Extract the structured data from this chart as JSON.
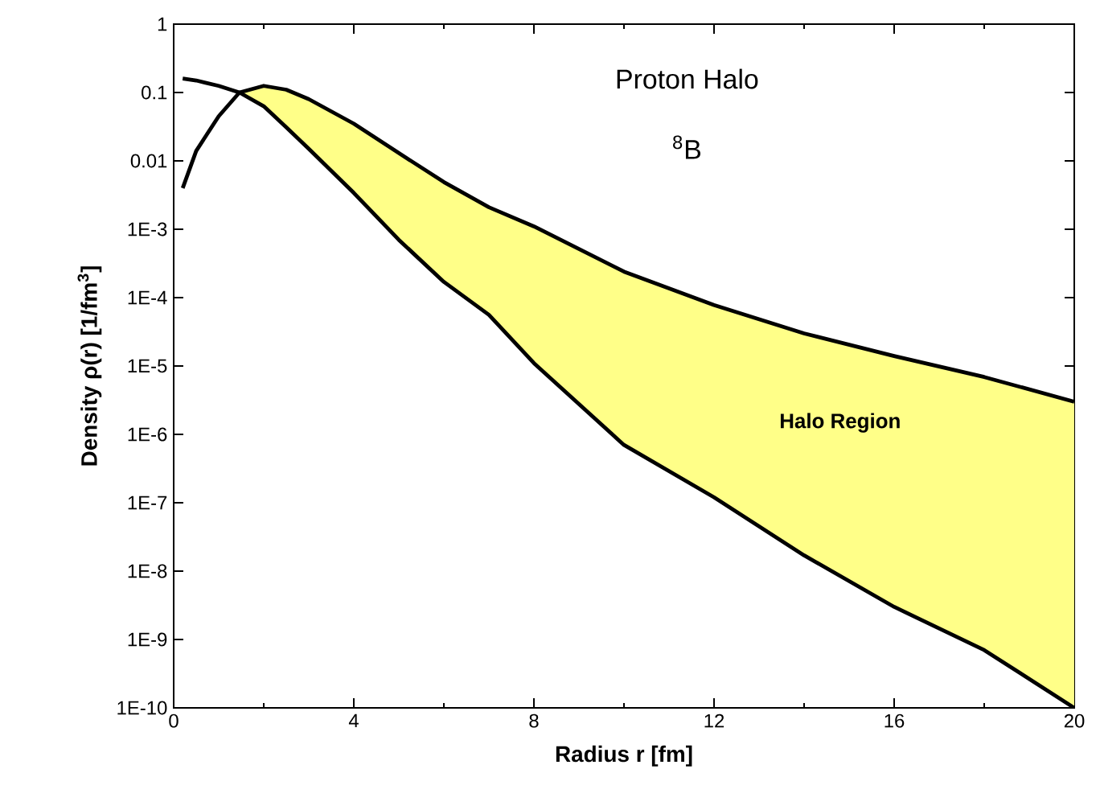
{
  "chart_data": {
    "type": "line",
    "title": "Proton Halo",
    "subtitle": "$^{8}$B",
    "xlabel": "Radius r [fm]",
    "ylabel": "Density ρ(r) [1/fm$^{3}$]",
    "x": [
      0.2,
      0.5,
      1,
      1.46,
      2,
      2.5,
      3,
      4,
      5,
      6,
      7,
      8,
      10,
      12,
      14,
      16,
      18,
      20
    ],
    "series": [
      {
        "color": "#000000",
        "values": [
          0.16,
          0.15,
          0.125,
          0.1,
          0.063,
          0.031,
          0.015,
          0.0034,
          0.0007,
          0.00017,
          5.6e-05,
          1.1e-05,
          7e-07,
          1.2e-07,
          1.7e-08,
          3e-09,
          7e-10,
          1e-10
        ]
      },
      {
        "color": "#000000",
        "values": [
          0.004,
          0.014,
          0.045,
          0.1,
          0.125,
          0.11,
          0.08,
          0.035,
          0.013,
          0.0049,
          0.0021,
          0.0011,
          0.00024,
          7.8e-05,
          3e-05,
          1.4e-05,
          6.9e-06,
          3e-06
        ],
        "lower": [
          null,
          null,
          null,
          0.1,
          0.063,
          0.031,
          0.015,
          0.0034,
          0.0007,
          0.00017,
          5.6e-05,
          1.1e-05,
          7e-07,
          1.2e-07,
          1.7e-08,
          3e-09,
          7e-10,
          1e-10
        ],
        "upper": [
          null,
          null,
          null,
          0.1,
          0.125,
          0.11,
          0.08,
          0.035,
          0.013,
          0.0049,
          0.0021,
          0.0011,
          0.00024,
          7.8e-05,
          3e-05,
          1.4e-05,
          6.9e-06,
          3e-06
        ]
      }
    ],
    "annotations": [
      "Halo Region"
    ],
    "xlim": [
      0,
      20
    ],
    "xticks": [
      0,
      4,
      8,
      12,
      16,
      20
    ],
    "ylim": [
      1e-10,
      1
    ],
    "yticks": [
      1,
      0.1,
      0.01,
      {
        "value": 0.001,
        "label": "1E-3"
      },
      {
        "value": 0.0001,
        "label": "1E-4"
      },
      {
        "value": 1e-05,
        "label": "1E-5"
      },
      {
        "value": 1e-06,
        "label": "1E-6"
      },
      {
        "value": 1e-07,
        "label": "1E-7"
      },
      {
        "value": 1e-08,
        "label": "1E-8"
      },
      {
        "value": 1e-09,
        "label": "1E-9"
      },
      {
        "value": 1e-10,
        "label": "1E-10"
      }
    ],
    "log": true,
    "grid": false,
    "marker": "none",
    "line_style": "solid"
  }
}
